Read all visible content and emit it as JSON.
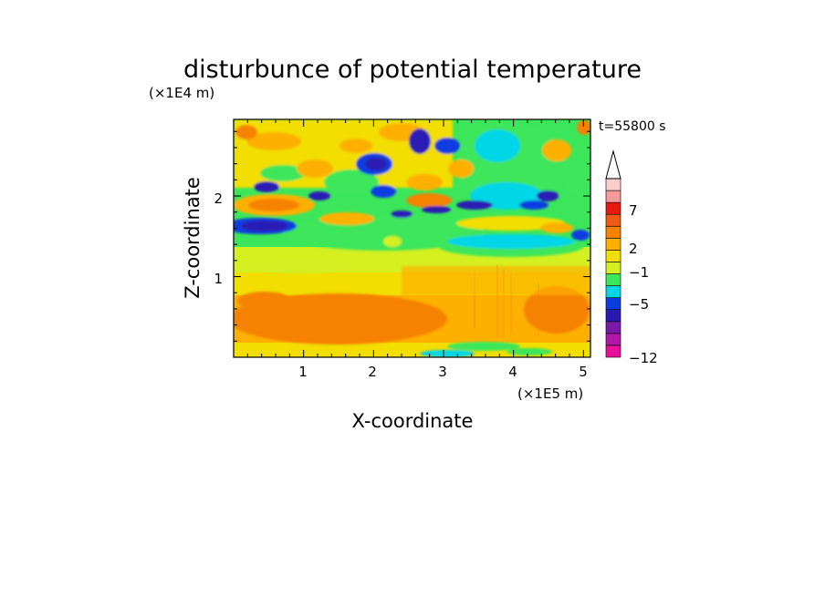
{
  "chart_data": {
    "type": "heatmap",
    "title": "disturbunce of potential temperature",
    "xlabel": "X-coordinate",
    "ylabel": "Z-coordinate",
    "x_unit": "(×1E5 m)",
    "y_unit": "(×1E4 m)",
    "time_label": "t=55800 s",
    "xlim": [
      0,
      5.1
    ],
    "ylim": [
      0,
      2.95
    ],
    "x_ticks": [
      "1",
      "2",
      "3",
      "4",
      "5"
    ],
    "y_ticks": [
      "1",
      "2"
    ],
    "colorbar": {
      "extend": "max",
      "colors": [
        "#e6109a",
        "#b018a8",
        "#7a1aa8",
        "#2a1ab4",
        "#0a3ce0",
        "#00d6e6",
        "#3ce65a",
        "#d4f020",
        "#f2de00",
        "#fdb000",
        "#f58200",
        "#f05a18",
        "#e61a10",
        "#f59a9a",
        "#fccdcd"
      ],
      "tick_labels": [
        "-12",
        "-5",
        "-1",
        "2",
        "7"
      ]
    },
    "field_note": ""
  }
}
